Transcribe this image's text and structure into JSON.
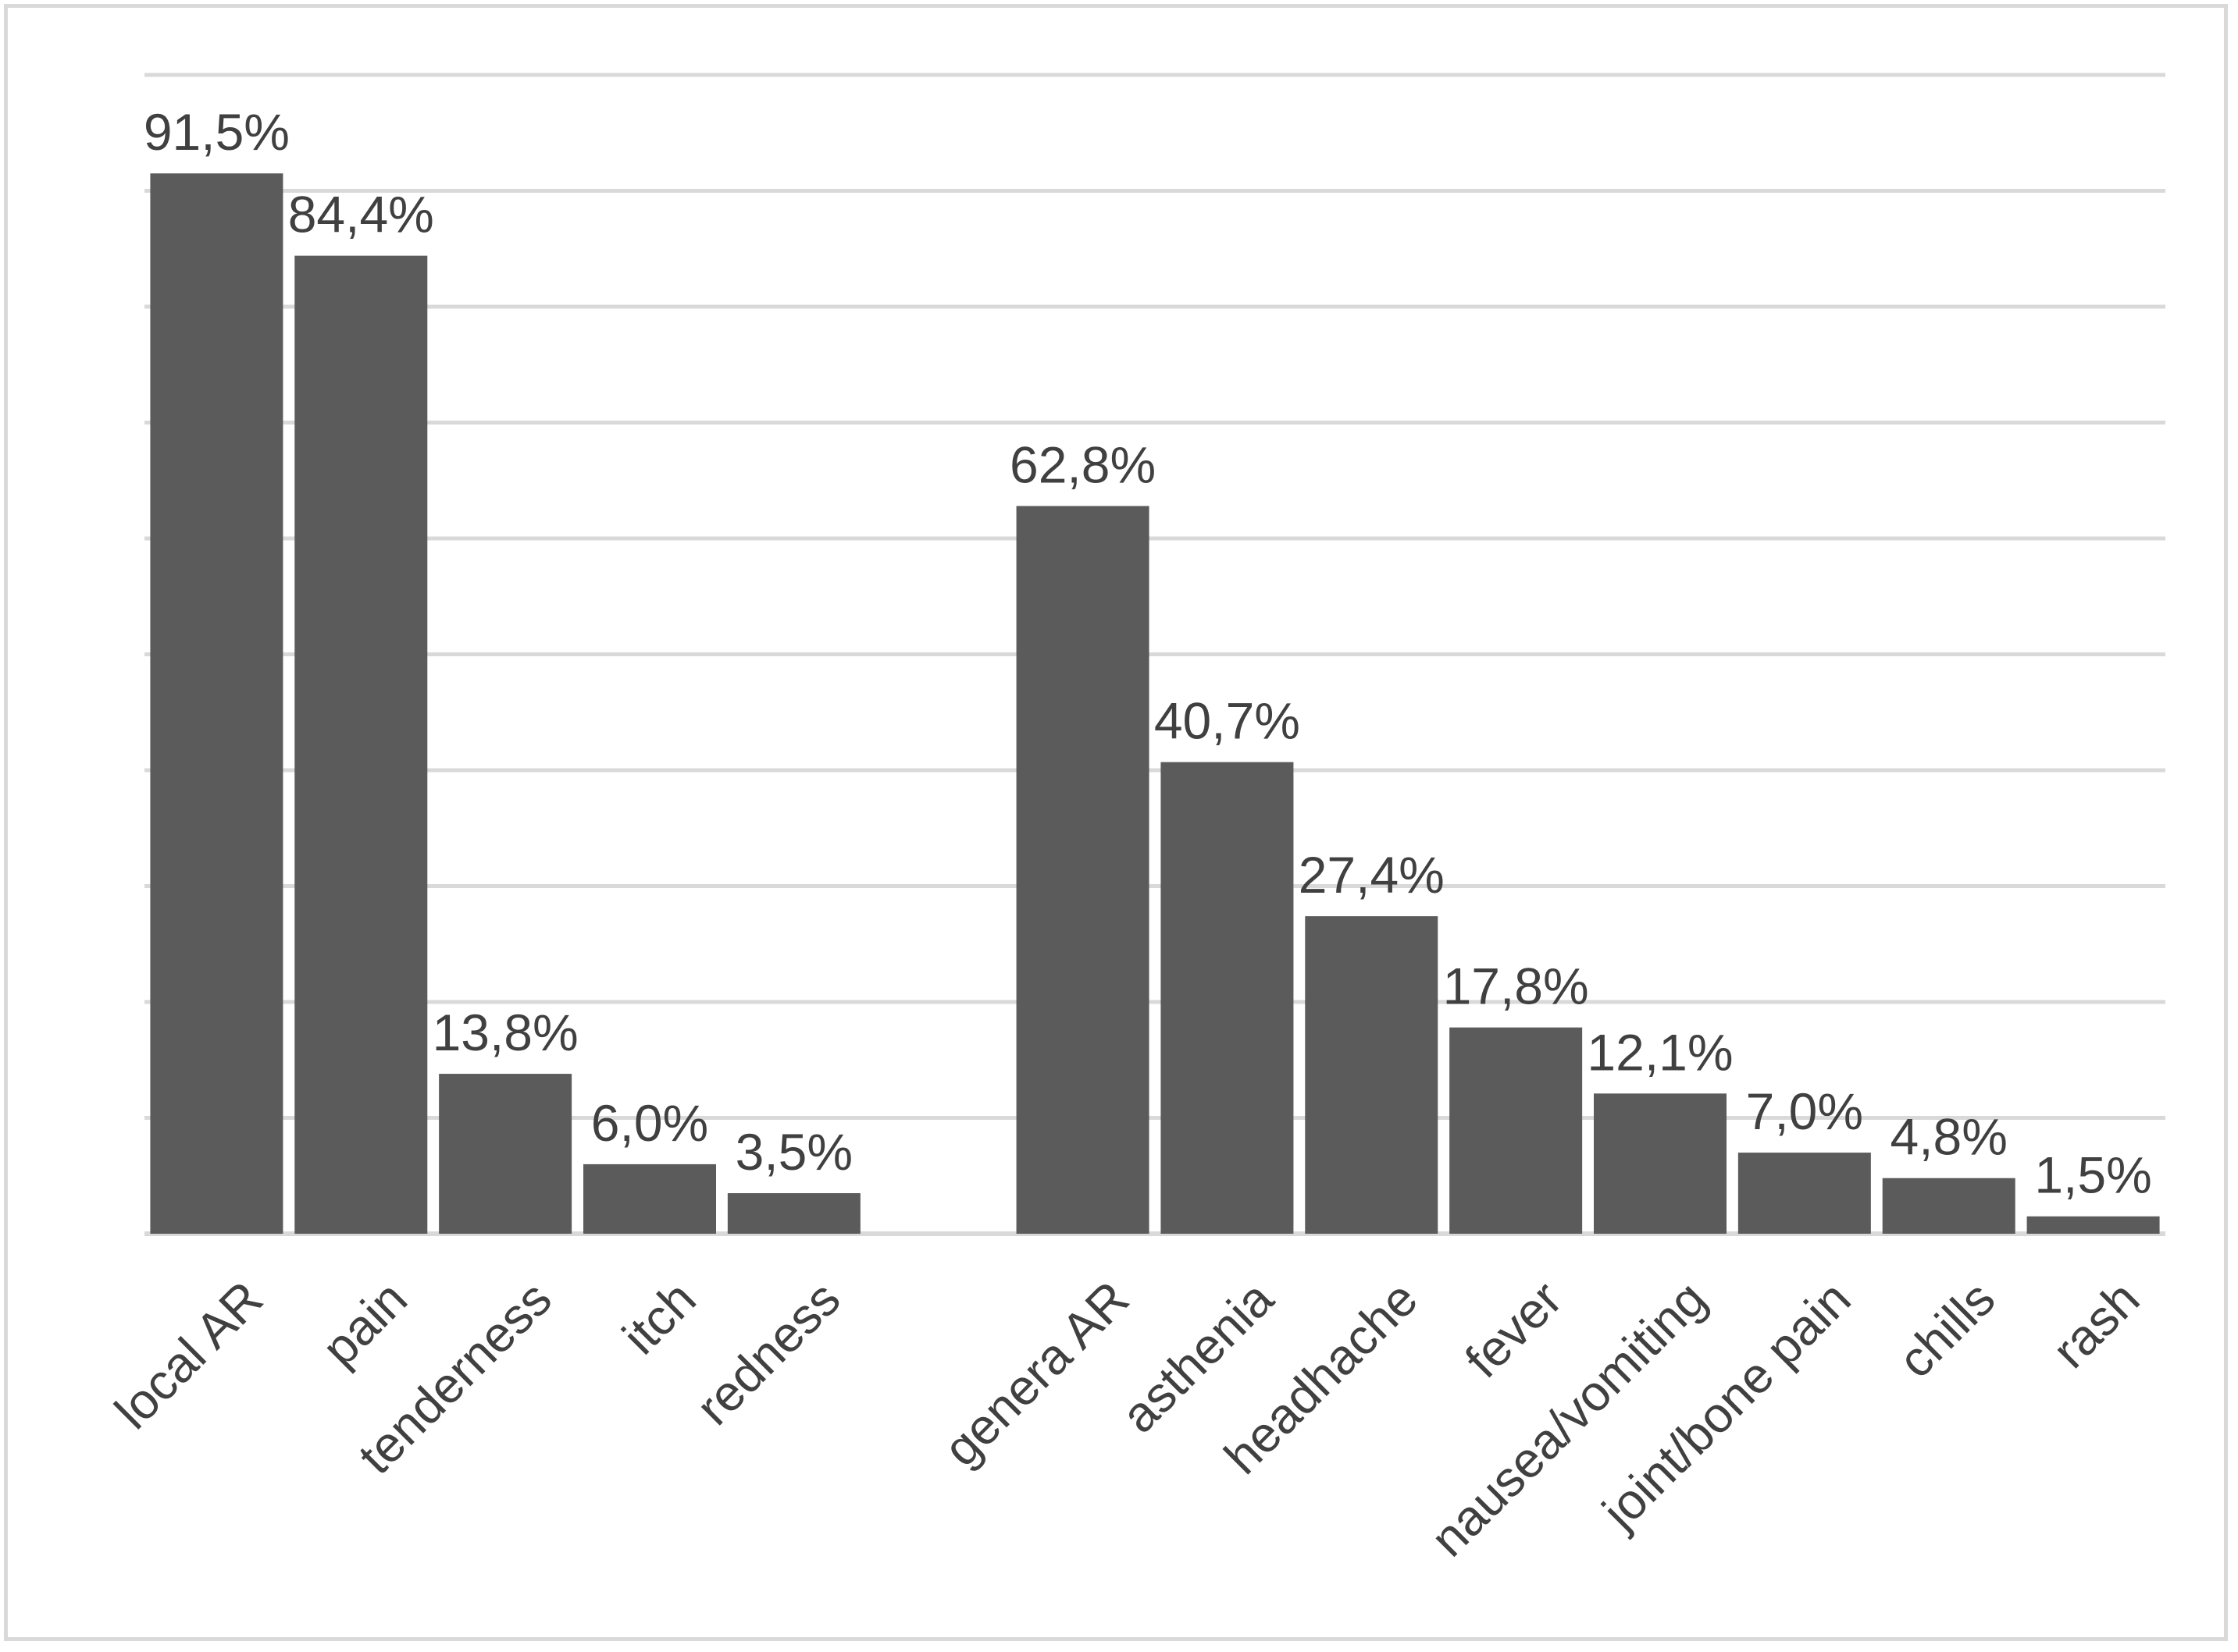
{
  "chart_data": {
    "type": "bar",
    "title": "",
    "xlabel": "",
    "ylabel": "",
    "ylim": [
      0,
      100
    ],
    "y_axis_labels_shown": false,
    "grid": true,
    "legend": "none",
    "bar_color": "#5b5b5b",
    "grid_color": "#d9d9d9",
    "text_color": "#404040",
    "groups": [
      {
        "categories": [
          "local AR",
          "pain",
          "tenderness",
          "itch",
          "redness"
        ],
        "values": [
          91.5,
          84.4,
          13.8,
          6.0,
          3.5
        ],
        "labels": [
          "91,5%",
          "84,4%",
          "13,8%",
          "6,0%",
          "3,5%"
        ]
      },
      {
        "categories": [
          "genera AR",
          "asthenia",
          "headhache",
          "fever",
          "nausea/vomiting",
          "joint/bone pain",
          "chills",
          "rash"
        ],
        "values": [
          62.8,
          40.7,
          27.4,
          17.8,
          12.1,
          7.0,
          4.8,
          1.5
        ],
        "labels": [
          "62,8%",
          "40,7%",
          "27,4%",
          "17,8%",
          "12,1%",
          "7,0%",
          "4,8%",
          "1,5%"
        ]
      }
    ]
  }
}
